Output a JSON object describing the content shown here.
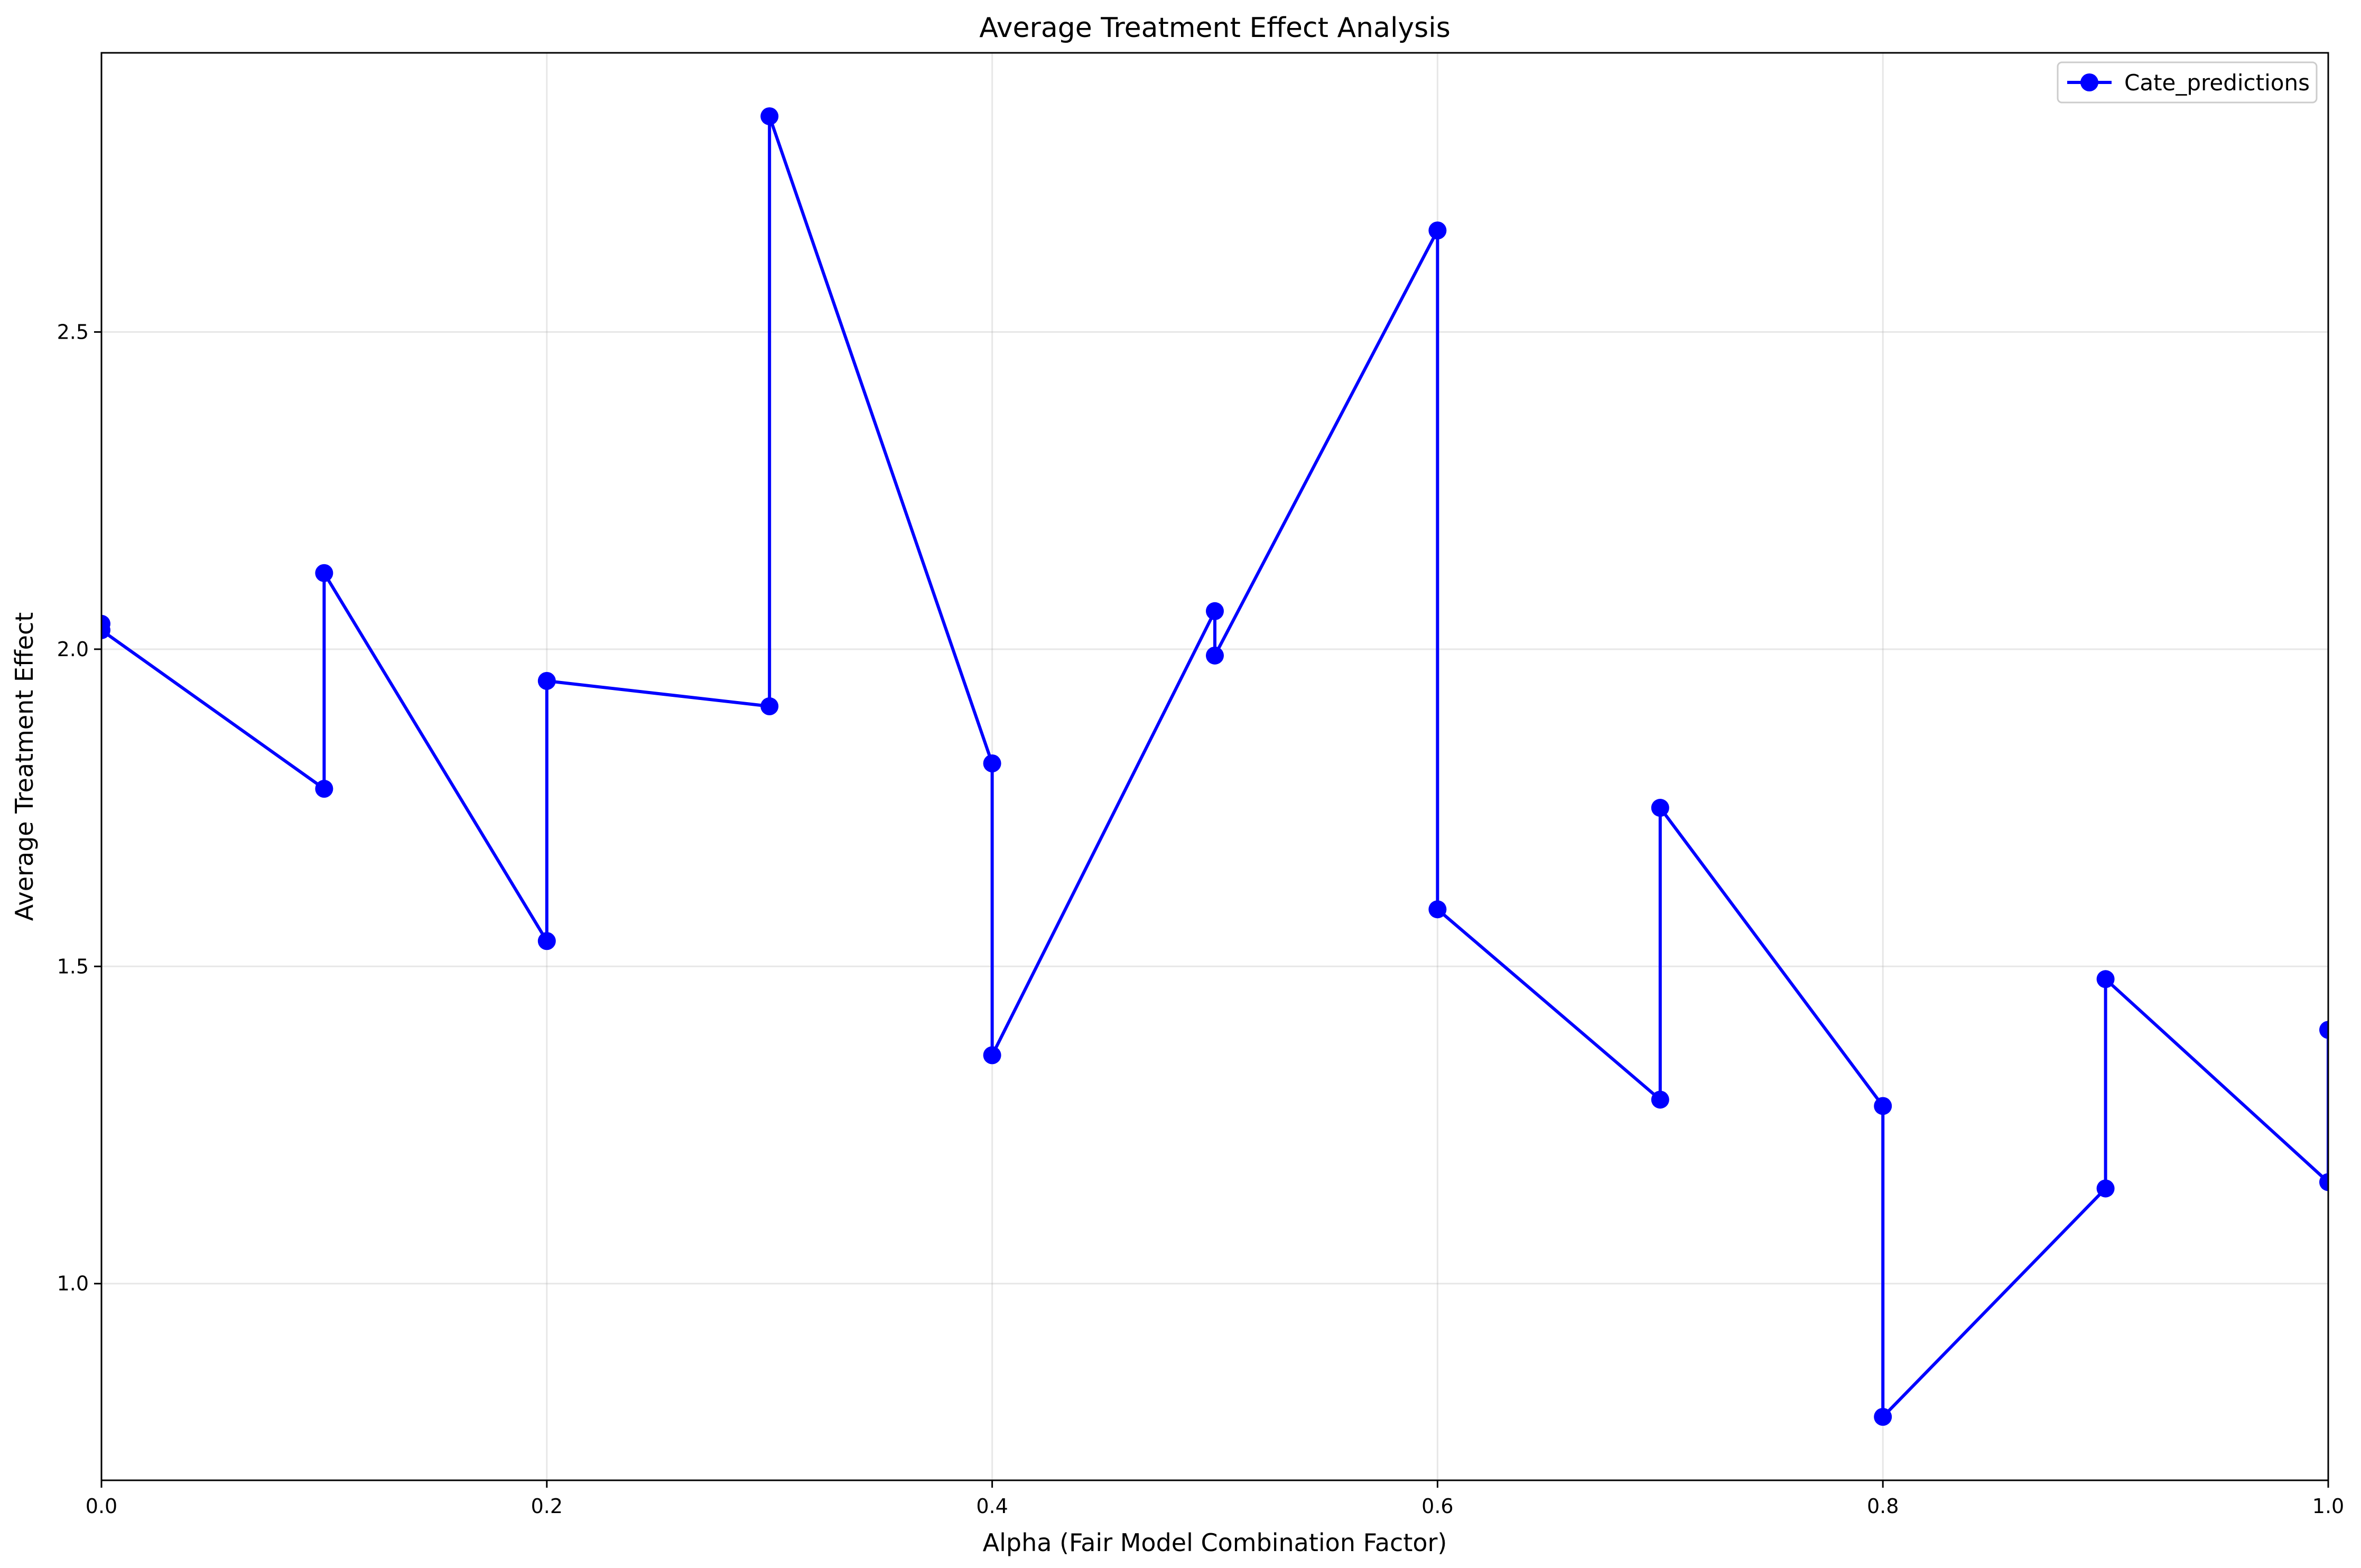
{
  "chart_data": {
    "type": "line",
    "title": "Average Treatment Effect Analysis",
    "xlabel": "Alpha (Fair Model Combination Factor)",
    "ylabel": "Average Treatment Effect",
    "xlim": [
      0.0,
      1.0
    ],
    "ylim": [
      0.69,
      2.94
    ],
    "xticks": [
      0.0,
      0.2,
      0.4,
      0.6,
      0.8,
      1.0
    ],
    "xtick_labels": [
      "0.0",
      "0.2",
      "0.4",
      "0.6",
      "0.8",
      "1.0"
    ],
    "yticks": [
      1.0,
      1.5,
      2.0,
      2.5
    ],
    "ytick_labels": [
      "1.0",
      "1.5",
      "2.0",
      "2.5"
    ],
    "grid": true,
    "legend_position": "top-right",
    "series": [
      {
        "name": "Cate_predictions",
        "color": "#0000ff",
        "marker": "circle",
        "x": [
          0.0,
          0.0,
          0.1,
          0.1,
          0.2,
          0.2,
          0.3,
          0.3,
          0.4,
          0.4,
          0.5,
          0.5,
          0.6,
          0.6,
          0.7,
          0.7,
          0.8,
          0.8,
          0.9,
          0.9,
          1.0,
          1.0
        ],
        "y": [
          2.04,
          2.03,
          1.78,
          2.12,
          1.54,
          1.95,
          1.91,
          2.84,
          1.82,
          1.36,
          2.06,
          1.99,
          2.66,
          1.59,
          1.29,
          1.75,
          1.28,
          0.79,
          1.15,
          1.48,
          1.16,
          1.4
        ]
      }
    ]
  }
}
